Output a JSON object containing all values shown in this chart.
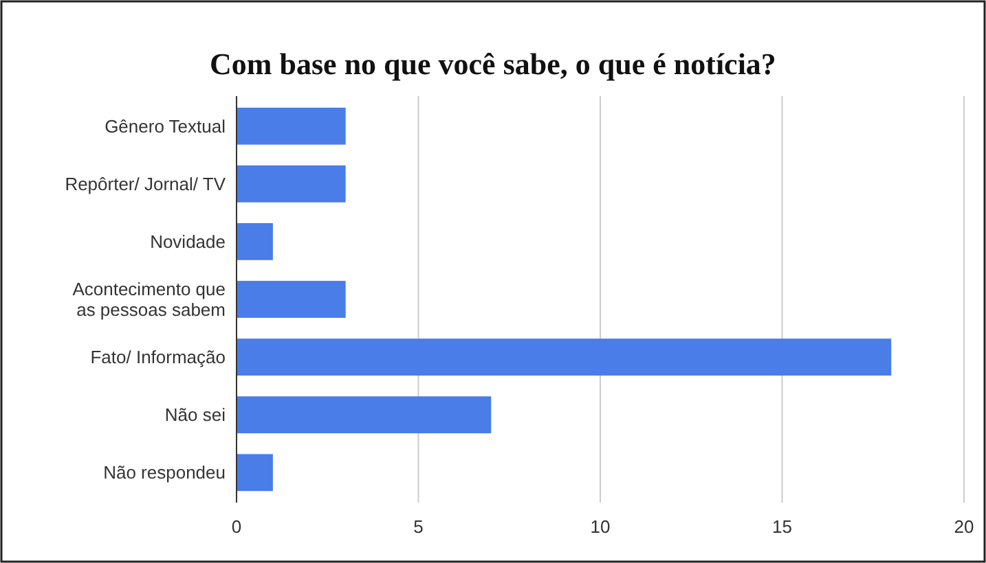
{
  "chart_data": {
    "type": "bar",
    "orientation": "horizontal",
    "title": "Com base no que você sabe, o que é notícia?",
    "categories": [
      "Gênero Textual",
      "Repôrter/ Jornal/ TV",
      "Novidade",
      "Acontecimento que as pessoas sabem",
      "Fato/ Informação",
      "Não sei",
      "Não respondeu"
    ],
    "values": [
      3,
      3,
      1,
      3,
      18,
      7,
      1
    ],
    "color": "#4a7de8",
    "xlim": [
      0,
      20
    ],
    "xticks": [
      0,
      5,
      10,
      15,
      20
    ],
    "grid": "x"
  }
}
